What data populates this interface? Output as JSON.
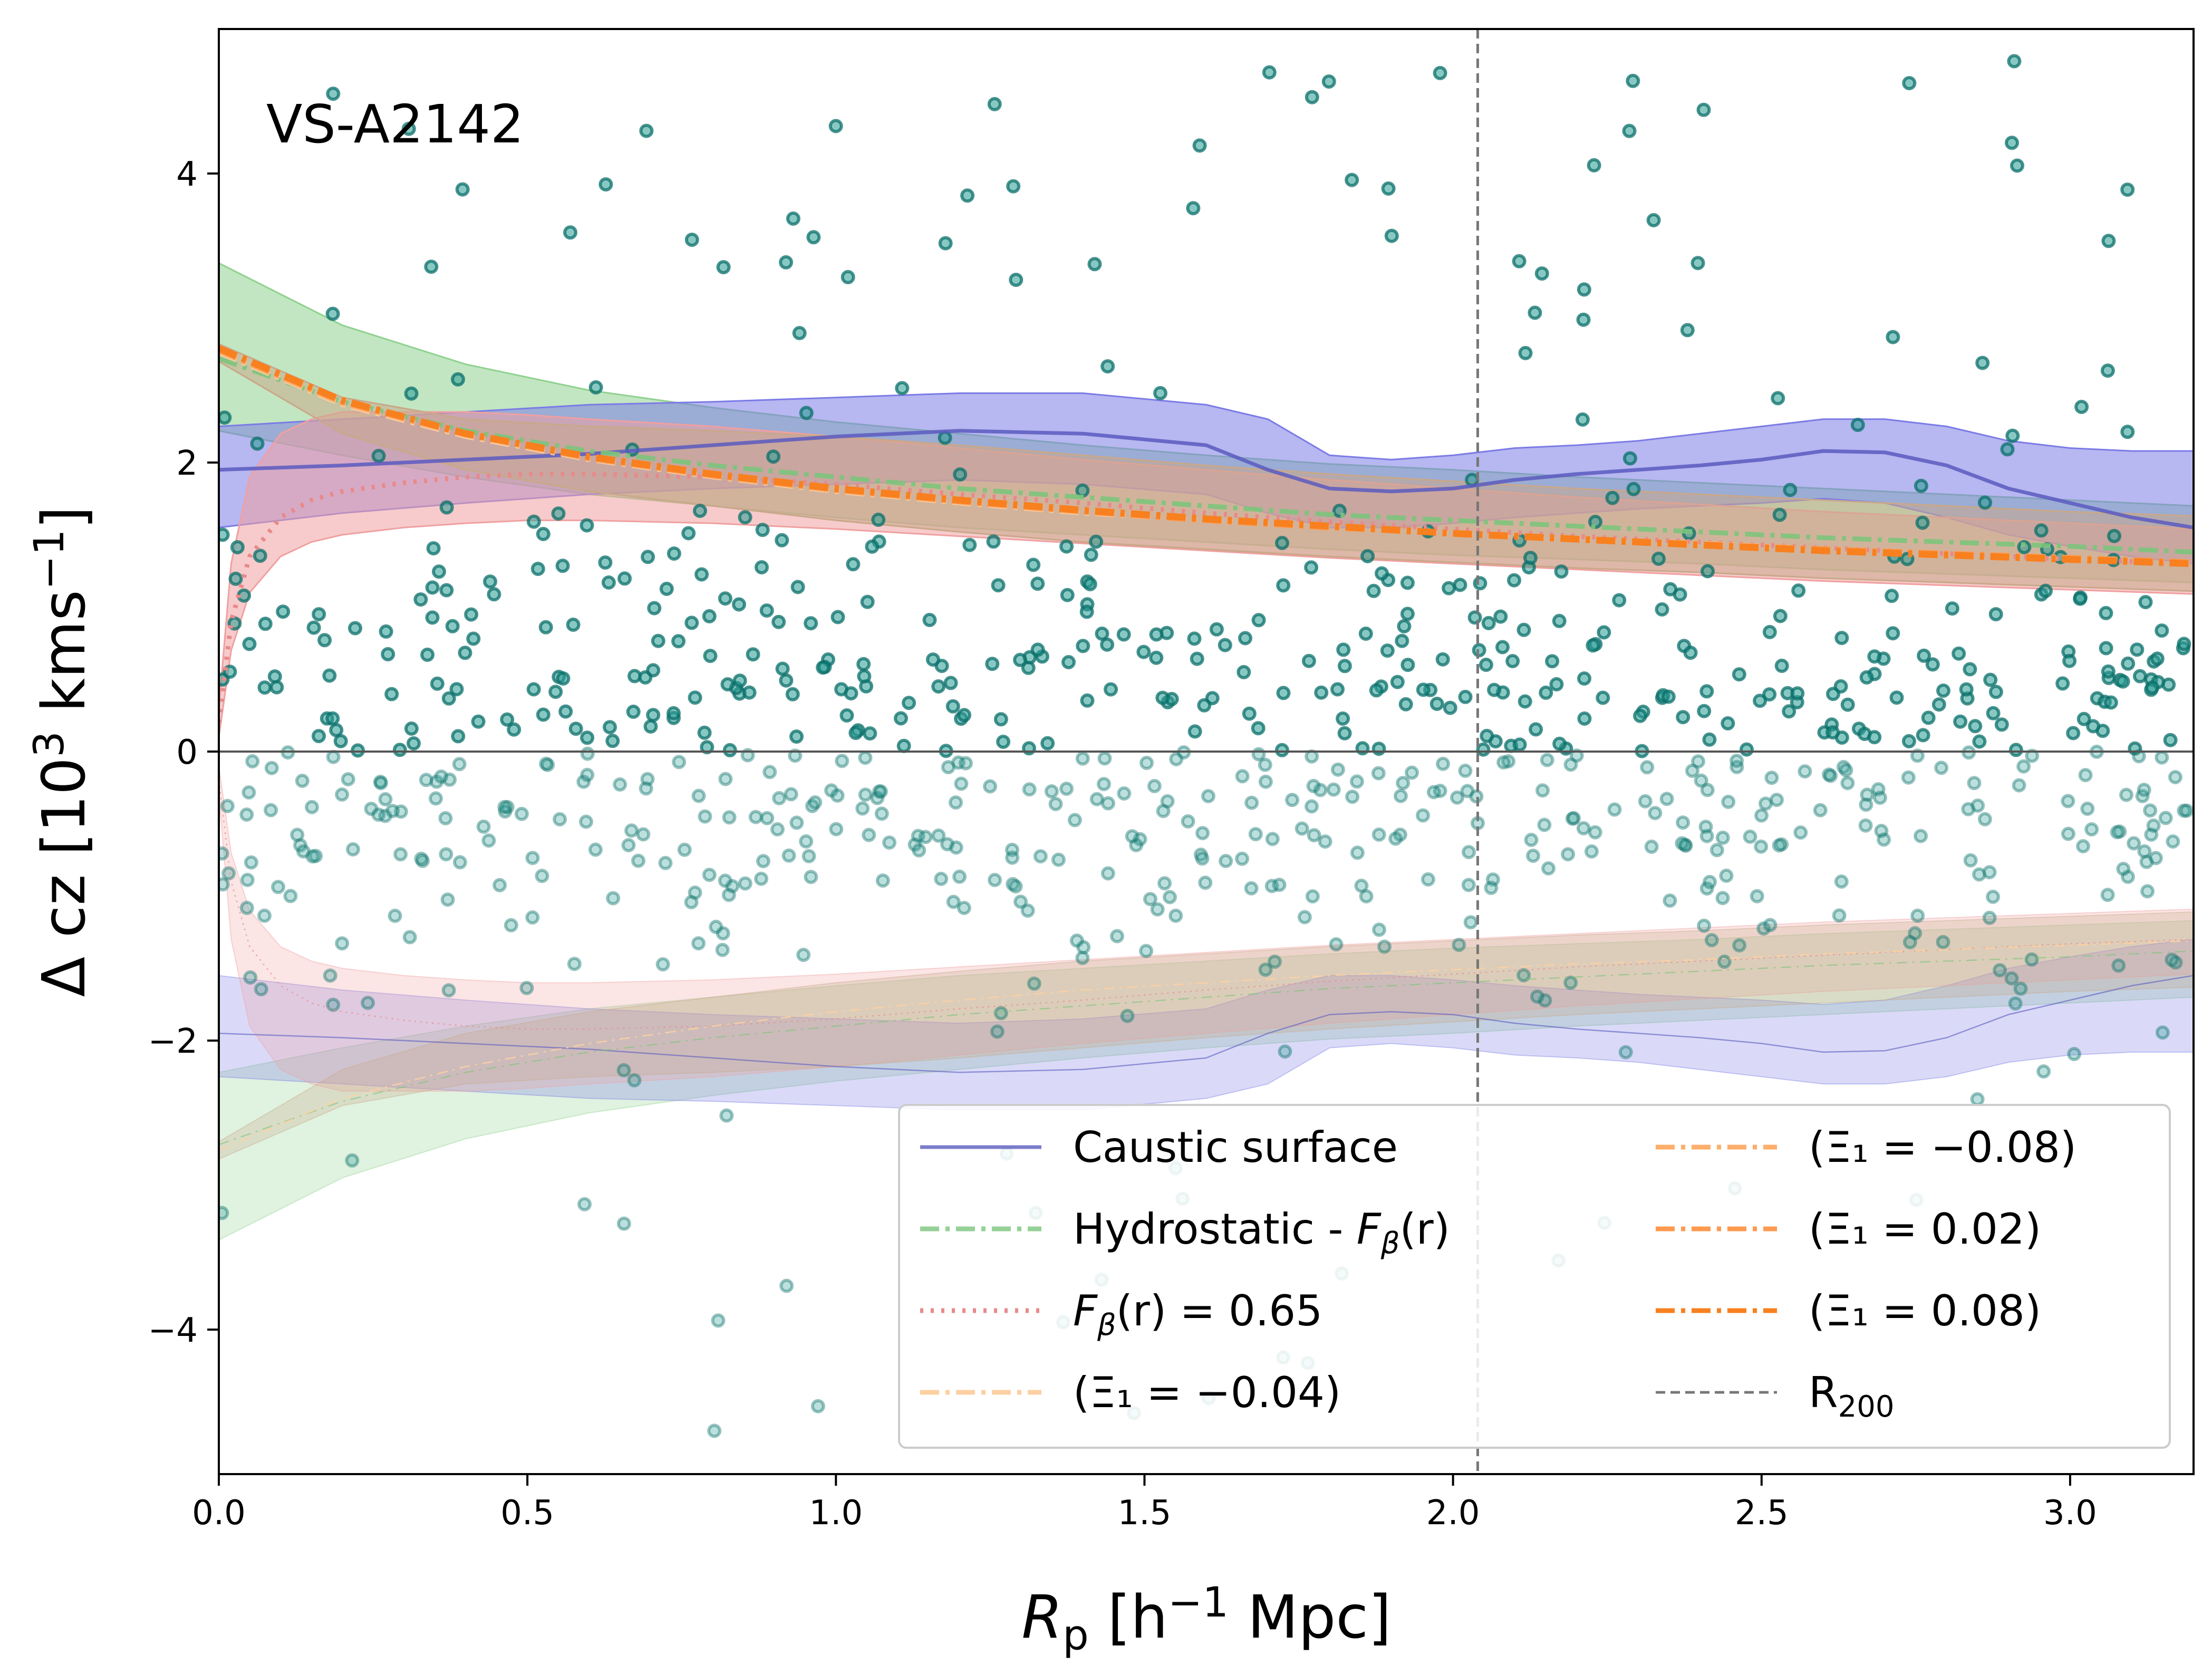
{
  "chart_data": {
    "type": "scatter",
    "panel_label": "VS-A2142",
    "xlabel": "R_p [h^-1 Mpc]",
    "ylabel": "Δ cz [10^3 kms^-1]",
    "xlim": [
      0.0,
      3.2
    ],
    "ylim": [
      -5.0,
      5.0
    ],
    "xticks": [
      0.0,
      0.5,
      1.0,
      1.5,
      2.0,
      2.5,
      3.0
    ],
    "xtick_labels": [
      "0.0",
      "0.5",
      "1.0",
      "1.5",
      "2.0",
      "2.5",
      "3.0"
    ],
    "yticks": [
      -4,
      -2,
      0,
      2,
      4
    ],
    "ytick_labels": [
      "−4",
      "−2",
      "0",
      "2",
      "4"
    ],
    "r200": 2.04,
    "zero_line": 0,
    "colors": {
      "points": "#2a9d94",
      "points_edge": "#0b6f6a",
      "caustic": "#5b5bbf",
      "caustic_band": "#7b7be6",
      "hydro": "#7cc47c",
      "hydro_band": "#8fd18f",
      "fbeta": "#e88a8a",
      "fbeta_band": "#f0a0a0",
      "xi_m004": "#fdd0a2",
      "xi_m008": "#fdae6b",
      "xi_002": "#fd9a50",
      "xi_008": "#f8801f",
      "xi_band": "#c9a88a",
      "r200": "#777777"
    },
    "series": [
      {
        "name": "Caustic surface",
        "x": [
          0.0,
          0.2,
          0.4,
          0.6,
          0.8,
          1.0,
          1.2,
          1.4,
          1.6,
          1.7,
          1.8,
          1.9,
          2.0,
          2.1,
          2.2,
          2.3,
          2.4,
          2.5,
          2.6,
          2.7,
          2.8,
          2.9,
          3.0,
          3.1,
          3.2
        ],
        "y": [
          1.95,
          1.98,
          2.02,
          2.06,
          2.12,
          2.18,
          2.22,
          2.2,
          2.12,
          1.95,
          1.82,
          1.8,
          1.82,
          1.88,
          1.92,
          1.95,
          1.98,
          2.02,
          2.08,
          2.07,
          1.98,
          1.82,
          1.72,
          1.62,
          1.55
        ],
        "band_upper": [
          2.25,
          2.3,
          2.35,
          2.4,
          2.42,
          2.45,
          2.48,
          2.48,
          2.4,
          2.3,
          2.05,
          2.02,
          2.05,
          2.1,
          2.12,
          2.15,
          2.2,
          2.25,
          2.3,
          2.3,
          2.25,
          2.15,
          2.1,
          2.08,
          2.08
        ],
        "band_lower": [
          1.55,
          1.65,
          1.72,
          1.78,
          1.82,
          1.85,
          1.88,
          1.85,
          1.78,
          1.65,
          1.55,
          1.55,
          1.58,
          1.62,
          1.65,
          1.68,
          1.7,
          1.72,
          1.75,
          1.72,
          1.62,
          1.5,
          1.42,
          1.35,
          1.3
        ]
      },
      {
        "name": "Hydrostatic - Fβ(r)",
        "x": [
          0.0,
          0.2,
          0.4,
          0.6,
          0.8,
          1.0,
          1.2,
          1.4,
          1.6,
          1.8,
          2.0,
          2.2,
          2.4,
          2.6,
          2.8,
          3.0,
          3.2
        ],
        "y": [
          2.72,
          2.42,
          2.22,
          2.08,
          1.98,
          1.9,
          1.82,
          1.76,
          1.7,
          1.64,
          1.6,
          1.56,
          1.52,
          1.48,
          1.45,
          1.42,
          1.38
        ],
        "band_upper": [
          3.38,
          2.95,
          2.68,
          2.5,
          2.38,
          2.28,
          2.2,
          2.12,
          2.05,
          1.99,
          1.95,
          1.9,
          1.86,
          1.82,
          1.78,
          1.74,
          1.7
        ],
        "band_lower": [
          2.22,
          2.05,
          1.9,
          1.78,
          1.7,
          1.62,
          1.55,
          1.5,
          1.45,
          1.4,
          1.36,
          1.33,
          1.3,
          1.26,
          1.23,
          1.2,
          1.17
        ]
      },
      {
        "name": "Fβ(r) = 0.65",
        "x": [
          0.0,
          0.02,
          0.05,
          0.1,
          0.15,
          0.2,
          0.3,
          0.4,
          0.5,
          0.6,
          0.8,
          1.0,
          1.2,
          1.4,
          1.6,
          1.8,
          2.0,
          2.2,
          2.4,
          2.6,
          2.8,
          3.0,
          3.2
        ],
        "y": [
          0.2,
          0.9,
          1.35,
          1.62,
          1.74,
          1.8,
          1.86,
          1.9,
          1.92,
          1.92,
          1.9,
          1.85,
          1.78,
          1.72,
          1.65,
          1.59,
          1.54,
          1.49,
          1.45,
          1.41,
          1.37,
          1.33,
          1.3
        ],
        "band_upper": [
          0.3,
          1.3,
          1.9,
          2.2,
          2.3,
          2.35,
          2.35,
          2.35,
          2.33,
          2.3,
          2.25,
          2.18,
          2.1,
          2.02,
          1.95,
          1.88,
          1.82,
          1.76,
          1.71,
          1.66,
          1.62,
          1.58,
          1.54
        ],
        "band_lower": [
          0.1,
          0.7,
          1.1,
          1.35,
          1.45,
          1.5,
          1.55,
          1.58,
          1.6,
          1.6,
          1.58,
          1.54,
          1.49,
          1.44,
          1.39,
          1.34,
          1.3,
          1.26,
          1.22,
          1.18,
          1.15,
          1.12,
          1.09
        ]
      },
      {
        "name": "(Ξ1 = −0.04)",
        "x": [
          0.0,
          0.2,
          0.4,
          0.6,
          0.8,
          1.0,
          1.2,
          1.4,
          1.6,
          1.8,
          2.0,
          2.2,
          2.4,
          2.6,
          2.8,
          3.0,
          3.2
        ],
        "y": [
          2.76,
          2.4,
          2.18,
          2.02,
          1.9,
          1.8,
          1.72,
          1.65,
          1.6,
          1.55,
          1.51,
          1.47,
          1.44,
          1.4,
          1.37,
          1.34,
          1.31
        ],
        "band_upper": [
          2.82,
          2.45,
          2.3,
          2.25,
          2.22,
          2.18,
          2.12,
          2.05,
          1.98,
          1.92,
          1.87,
          1.82,
          1.78,
          1.74,
          1.7,
          1.66,
          1.63
        ],
        "band_lower": [
          2.7,
          2.2,
          1.95,
          1.8,
          1.7,
          1.6,
          1.52,
          1.45,
          1.4,
          1.35,
          1.31,
          1.27,
          1.24,
          1.2,
          1.17,
          1.14,
          1.11
        ]
      },
      {
        "name": "(Ξ1 = −0.08)",
        "x": [
          0.0,
          0.2,
          0.4,
          0.6,
          0.8,
          1.0,
          1.2,
          1.4,
          1.6,
          1.8,
          2.0,
          2.2,
          2.4,
          2.6,
          2.8,
          3.0,
          3.2
        ],
        "y": [
          2.77,
          2.41,
          2.19,
          2.03,
          1.91,
          1.81,
          1.73,
          1.66,
          1.6,
          1.55,
          1.51,
          1.47,
          1.44,
          1.4,
          1.37,
          1.34,
          1.31
        ]
      },
      {
        "name": "(Ξ1 = 0.02)",
        "x": [
          0.0,
          0.2,
          0.4,
          0.6,
          0.8,
          1.0,
          1.2,
          1.4,
          1.6,
          1.8,
          2.0,
          2.2,
          2.4,
          2.6,
          2.8,
          3.0,
          3.2
        ],
        "y": [
          2.78,
          2.42,
          2.2,
          2.03,
          1.91,
          1.81,
          1.73,
          1.66,
          1.6,
          1.55,
          1.51,
          1.47,
          1.43,
          1.4,
          1.37,
          1.34,
          1.31
        ]
      },
      {
        "name": "(Ξ1 = 0.08)",
        "x": [
          0.0,
          0.2,
          0.4,
          0.6,
          0.8,
          1.0,
          1.2,
          1.4,
          1.6,
          1.8,
          2.0,
          2.2,
          2.4,
          2.6,
          2.8,
          3.0,
          3.2
        ],
        "y": [
          2.79,
          2.43,
          2.2,
          2.04,
          1.92,
          1.82,
          1.74,
          1.67,
          1.61,
          1.56,
          1.51,
          1.47,
          1.43,
          1.39,
          1.36,
          1.33,
          1.3
        ]
      }
    ],
    "legend": {
      "placement": "lower-right",
      "entries": [
        {
          "label": "Caustic surface",
          "key": "caustic",
          "style": "solid"
        },
        {
          "label_parts": [
            "Hydrostatic - ",
            "F",
            "β",
            "(r)"
          ],
          "key": "hydro",
          "style": "dashdot"
        },
        {
          "label_parts": [
            "F",
            "β",
            "(r) = 0.65"
          ],
          "key": "fbeta",
          "style": "dotted"
        },
        {
          "label": "(Ξ₁ = −0.04)",
          "key": "xi_m004",
          "style": "dashdot"
        },
        {
          "label": "(Ξ₁ = −0.08)",
          "key": "xi_m008",
          "style": "dashdot"
        },
        {
          "label": "(Ξ₁ = 0.02)",
          "key": "xi_002",
          "style": "dashdot"
        },
        {
          "label": "(Ξ₁ = 0.08)",
          "key": "xi_008",
          "style": "dashdot"
        },
        {
          "label_parts": [
            "R",
            "200"
          ],
          "key": "r200",
          "style": "dashed"
        }
      ]
    },
    "points_seed": 20142,
    "points_count": 900
  }
}
